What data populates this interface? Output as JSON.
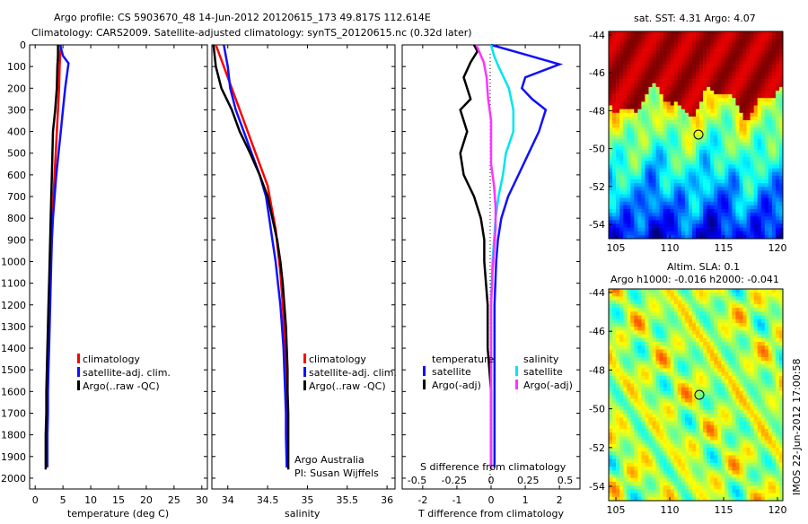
{
  "title_line1": "Argo profile: CS 5903670_48 14-Jun-2012 20120615_173 49.817S 112.614E",
  "title_line2": "Climatology: CARS2009. Satellite-adjusted climatology: synTS_20120615.nc (0.32d later)",
  "colors": {
    "climatology": "#ff0000",
    "satellite": "#1010ff",
    "argo": "#000000",
    "sal_satellite": "#00e5ee",
    "sal_argo": "#ff33ff"
  },
  "temp_panel": {
    "xlabel": "temperature (deg C)",
    "xticks": [
      "0",
      "5",
      "10",
      "15",
      "20",
      "25",
      "30"
    ],
    "yticks": [
      "0",
      "100",
      "200",
      "300",
      "400",
      "500",
      "600",
      "700",
      "800",
      "900",
      "1000",
      "1100",
      "1200",
      "1300",
      "1400",
      "1500",
      "1600",
      "1700",
      "1800",
      "1900",
      "2000"
    ],
    "legend": [
      "climatology",
      "satellite-adj. clim.",
      "Argo(..raw -QC)"
    ]
  },
  "sal_panel": {
    "xlabel": "salinity",
    "xticks": [
      "34",
      "34.5",
      "35",
      "35.5",
      "36"
    ],
    "legend": [
      "climatology",
      "satellite-adj. clim.",
      "Argo(..raw -QC)"
    ],
    "note1": "Argo Australia",
    "note2": "PI: Susan Wijffels"
  },
  "diff_panel": {
    "xlabel": "T difference from climatology",
    "xticks": [
      "-2",
      "-1",
      "0",
      "1",
      "2"
    ],
    "top_label": "S difference from climatology",
    "top_ticks": [
      "-0.5",
      "-0.25",
      "0",
      "0.25",
      "0.5"
    ],
    "leg_temp_title": "temperature",
    "leg_sal_title": "salinity",
    "leg_temp": [
      "satellite",
      "Argo(-adj)"
    ],
    "leg_sal": [
      "satellite",
      "Argo(-adj)"
    ]
  },
  "map1": {
    "title": "sat. SST: 4.31  Argo: 4.07",
    "yticks": [
      "-44",
      "-46",
      "-48",
      "-50",
      "-52",
      "-54"
    ],
    "xticks": [
      "105",
      "110",
      "115",
      "120"
    ]
  },
  "map2": {
    "title_line1": "Altim. SLA: 0.1",
    "title_line2": "Argo h1000: -0.016 h2000: -0.041",
    "yticks": [
      "-44",
      "-46",
      "-48",
      "-50",
      "-52",
      "-54"
    ],
    "xticks": [
      "105",
      "110",
      "115",
      "120"
    ]
  },
  "stamp": "IMOS 22-Jun-2012 17:00:58",
  "chart_data": [
    {
      "type": "line",
      "xlabel": "temperature (deg C)",
      "ylabel": "",
      "xlim": [
        -1,
        31
      ],
      "ylim": [
        2050,
        0
      ],
      "series": [
        {
          "name": "climatology",
          "x": [
            4.6,
            4.5,
            4.4,
            4.3,
            4.1,
            3.9,
            3.7,
            3.5,
            3.3,
            3.1,
            2.9,
            2.8,
            2.7,
            2.6,
            2.5,
            2.4,
            2.3,
            2.2,
            2.2,
            2.1,
            2.1
          ],
          "y": [
            0,
            50,
            100,
            200,
            300,
            400,
            500,
            600,
            700,
            800,
            900,
            1000,
            1100,
            1200,
            1300,
            1400,
            1500,
            1600,
            1700,
            1800,
            1900
          ]
        },
        {
          "name": "satellite-adj. clim.",
          "x": [
            4.5,
            5.0,
            6.0,
            5.4,
            5.0,
            4.6,
            4.2,
            3.8,
            3.5,
            3.2,
            3.0,
            2.9,
            2.8,
            2.7,
            2.6,
            2.5,
            2.4,
            2.3,
            2.3,
            2.2,
            2.2
          ],
          "y": [
            0,
            50,
            85,
            200,
            300,
            400,
            500,
            600,
            700,
            800,
            900,
            1000,
            1100,
            1200,
            1300,
            1400,
            1500,
            1600,
            1700,
            1800,
            1950
          ]
        },
        {
          "name": "Argo(..raw -QC)",
          "x": [
            4.1,
            4.1,
            4.0,
            3.9,
            3.6,
            3.2,
            3.1,
            3.0,
            2.9,
            2.8,
            2.7,
            2.6,
            2.5,
            2.4,
            2.3,
            2.2,
            2.1,
            2.0,
            2.0,
            1.9,
            1.9
          ],
          "y": [
            0,
            50,
            100,
            200,
            300,
            400,
            500,
            600,
            700,
            800,
            900,
            1000,
            1100,
            1200,
            1300,
            1400,
            1500,
            1600,
            1700,
            1800,
            1960
          ]
        }
      ]
    },
    {
      "type": "line",
      "xlabel": "salinity",
      "ylabel": "",
      "xlim": [
        33.8,
        36.1
      ],
      "ylim": [
        2050,
        0
      ],
      "series": [
        {
          "name": "climatology",
          "x": [
            33.85,
            33.95,
            34.0,
            34.1,
            34.2,
            34.3,
            34.4,
            34.5,
            34.55,
            34.6,
            34.63,
            34.66,
            34.68,
            34.7,
            34.71,
            34.72,
            34.73,
            34.73,
            34.74,
            34.74
          ],
          "y": [
            0,
            100,
            150,
            250,
            350,
            450,
            550,
            650,
            750,
            850,
            950,
            1050,
            1150,
            1250,
            1350,
            1450,
            1550,
            1650,
            1750,
            1950
          ]
        },
        {
          "name": "satellite-adj. clim.",
          "x": [
            33.95,
            34.0,
            34.03,
            34.1,
            34.2,
            34.3,
            34.4,
            34.48,
            34.52,
            34.56,
            34.6,
            34.63,
            34.66,
            34.68,
            34.7,
            34.71,
            34.72,
            34.73,
            34.73,
            34.74
          ],
          "y": [
            0,
            100,
            200,
            300,
            400,
            500,
            600,
            700,
            800,
            900,
            1000,
            1100,
            1200,
            1300,
            1400,
            1500,
            1600,
            1700,
            1800,
            1950
          ]
        },
        {
          "name": "Argo(..raw -QC)",
          "x": [
            33.82,
            33.85,
            33.92,
            34.05,
            34.15,
            34.28,
            34.4,
            34.5,
            34.56,
            34.62,
            34.66,
            34.69,
            34.71,
            34.73,
            34.74,
            34.75,
            34.75,
            34.76,
            34.76,
            34.76
          ],
          "y": [
            0,
            100,
            200,
            300,
            400,
            500,
            600,
            700,
            800,
            900,
            1000,
            1100,
            1200,
            1300,
            1400,
            1500,
            1600,
            1700,
            1800,
            1960
          ]
        }
      ]
    },
    {
      "type": "line",
      "xlabel": "T difference from climatology",
      "ylabel": "",
      "xlim": [
        -2.6,
        2.6
      ],
      "ylim": [
        2050,
        0
      ],
      "series": [
        {
          "name": "satellite",
          "x": [
            0,
            0.9,
            2.0,
            1.0,
            0.9,
            1.2,
            1.6,
            1.4,
            1.1,
            0.8,
            0.5,
            0.3,
            0.2,
            0.15,
            0.1,
            0.1,
            0.1,
            0.1,
            0.1,
            0.1
          ],
          "y": [
            0,
            40,
            90,
            150,
            200,
            250,
            300,
            400,
            500,
            600,
            700,
            800,
            900,
            1000,
            1200,
            1400,
            1600,
            1800,
            1900,
            1950
          ]
        },
        {
          "name": "Argo(-adj)",
          "x": [
            -0.5,
            -0.4,
            -0.6,
            -0.8,
            -0.6,
            -0.9,
            -0.7,
            -0.9,
            -0.8,
            -0.5,
            -0.3,
            -0.2,
            -0.2,
            -0.15,
            -0.1,
            -0.1,
            0,
            0,
            0,
            0
          ],
          "y": [
            0,
            30,
            80,
            150,
            250,
            300,
            400,
            500,
            600,
            700,
            800,
            900,
            1000,
            1100,
            1200,
            1400,
            1600,
            1800,
            1900,
            1960
          ]
        }
      ]
    },
    {
      "type": "line",
      "xlabel": "S difference from climatology",
      "ylabel": "",
      "xlim": [
        -0.6,
        0.6
      ],
      "ylim": [
        2050,
        0
      ],
      "series": [
        {
          "name": "satellite",
          "x": [
            0,
            0.02,
            0.05,
            0.12,
            0.15,
            0.15,
            0.1,
            0.08,
            0.05,
            0.03,
            0.02,
            0.01,
            0,
            0,
            0,
            0,
            0,
            0
          ],
          "y": [
            0,
            50,
            100,
            200,
            300,
            400,
            500,
            600,
            700,
            800,
            900,
            1000,
            1200,
            1400,
            1600,
            1800,
            1900,
            1950
          ]
        },
        {
          "name": "Argo(-adj)",
          "x": [
            -0.1,
            -0.05,
            -0.03,
            -0.02,
            0,
            0,
            0,
            0.02,
            0.03,
            0.03,
            0.02,
            0.01,
            0,
            0,
            0,
            0,
            0,
            0
          ],
          "y": [
            0,
            80,
            150,
            250,
            350,
            450,
            550,
            650,
            750,
            850,
            950,
            1050,
            1200,
            1400,
            1600,
            1800,
            1900,
            1960
          ]
        }
      ]
    }
  ]
}
